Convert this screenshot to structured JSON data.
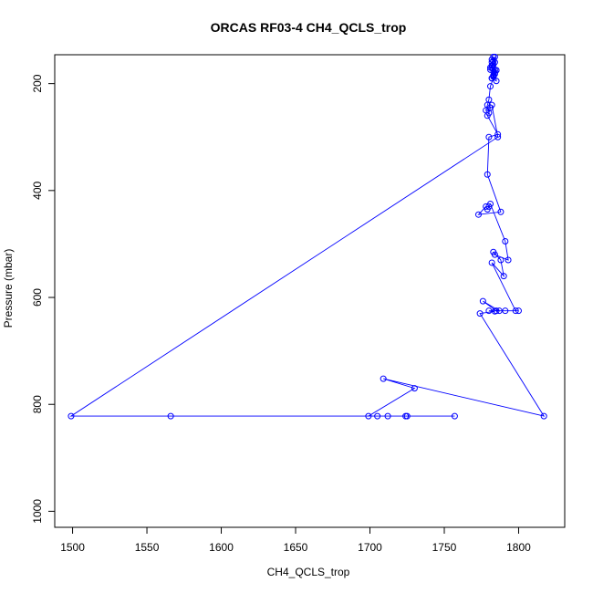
{
  "chart_data": {
    "type": "scatter",
    "title": "ORCAS RF03-4 CH4_QCLS_trop",
    "xlabel": "CH4_QCLS_trop",
    "ylabel": "Pressure (mbar)",
    "xlim": [
      1488,
      1831
    ],
    "ylim": [
      1030,
      146
    ],
    "y_reversed": true,
    "x_ticks": [
      1500,
      1550,
      1600,
      1650,
      1700,
      1750,
      1800
    ],
    "y_ticks": [
      200,
      400,
      600,
      800,
      1000
    ],
    "grid": false,
    "legend": "none",
    "series_color": "#0000ff",
    "series": [
      {
        "x": [
          1783,
          1782,
          1784,
          1783,
          1782,
          1785,
          1784,
          1783,
          1782,
          1785,
          1784,
          1783,
          1782,
          1781,
          1784,
          1783,
          1782,
          1781,
          1784,
          1783,
          1782,
          1785,
          1781,
          1780,
          1779,
          1778,
          1781,
          1780,
          1779,
          1786,
          1780,
          1779,
          1788,
          1773,
          1778,
          1779,
          1780,
          1781,
          1791,
          1793,
          1784,
          1783,
          1788,
          1790,
          1782,
          1798,
          1800,
          1785,
          1776,
          1787,
          1791,
          1780,
          1784,
          1774,
          1817,
          1709,
          1730,
          1699,
          1705,
          1712,
          1724,
          1725,
          1757,
          1566,
          1499,
          1786,
          1782
        ],
        "y": [
          150,
          155,
          160,
          165,
          170,
          175,
          180,
          185,
          190,
          195,
          150,
          158,
          166,
          174,
          182,
          187,
          190,
          170,
          175,
          185,
          160,
          175,
          205,
          230,
          240,
          250,
          245,
          255,
          260,
          295,
          300,
          370,
          440,
          445,
          430,
          435,
          430,
          425,
          495,
          530,
          520,
          515,
          530,
          560,
          535,
          625,
          625,
          625,
          607,
          625,
          625,
          625,
          626,
          630,
          822,
          752,
          770,
          822,
          822,
          822,
          822,
          822,
          822,
          822,
          822,
          300,
          240
        ]
      }
    ]
  }
}
